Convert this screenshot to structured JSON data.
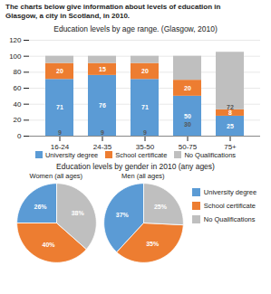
{
  "title": "The charts below give information about levels of education in\nGlasgow, a city in Scotland, in 2010.",
  "chart_data": [
    {
      "type": "bar",
      "title": "Education levels by age range. (Glasgow, 2010)",
      "categories": [
        "16-24",
        "24-35",
        "35-50",
        "50-75",
        "75+"
      ],
      "series": [
        {
          "name": "University degree",
          "color": "#5b9bd5",
          "values": [
            71,
            76,
            71,
            50,
            25
          ]
        },
        {
          "name": "School certificate",
          "color": "#ed7d31",
          "values": [
            20,
            15,
            20,
            20,
            8
          ]
        },
        {
          "name": "No Qualifications",
          "color": "#bfbfbf",
          "values": [
            9,
            9,
            9,
            30,
            72
          ]
        }
      ],
      "stacked": true,
      "data_labels": true,
      "legend": "bottom",
      "grid": true,
      "ylim": [
        0,
        120
      ],
      "yticks": [
        0,
        20,
        40,
        60,
        80,
        100,
        120
      ]
    },
    {
      "type": "pie",
      "title": "Women (all ages)",
      "subtitle": "Education levels by gender in 2010 (any ages)",
      "categories": [
        "University degree",
        "School certificate",
        "No Qualifications"
      ],
      "values": [
        26,
        40,
        38
      ],
      "value_labels": [
        "26%",
        "40%",
        "38%"
      ],
      "colors": [
        "#5b9bd5",
        "#ed7d31",
        "#bfbfbf"
      ],
      "data_labels": true
    },
    {
      "type": "pie",
      "title": "Men (all ages)",
      "categories": [
        "University degree",
        "School certificate",
        "No Qualifications"
      ],
      "values": [
        37,
        35,
        25
      ],
      "value_labels": [
        "37%",
        "35%",
        "25%"
      ],
      "colors": [
        "#5b9bd5",
        "#ed7d31",
        "#bfbfbf"
      ],
      "data_labels": true,
      "legend": "right"
    }
  ]
}
